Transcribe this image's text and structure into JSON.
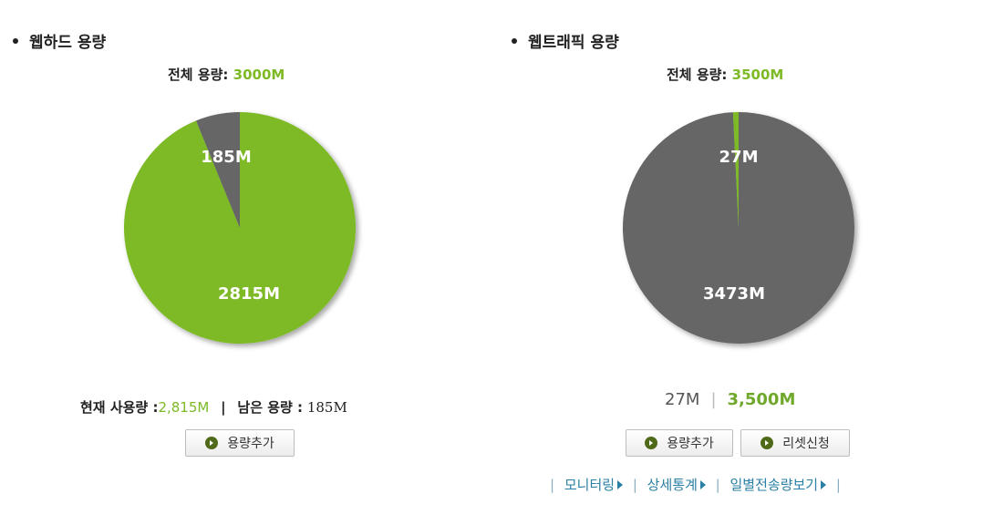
{
  "webhard": {
    "title": "웹하드 용량",
    "total_label": "전체 용량:",
    "total_value": "3000M",
    "pie": {
      "used": 2815,
      "remaining": 185,
      "used_label": "2815M",
      "remaining_label": "185M"
    },
    "current_usage_label": "현재 사용량 :",
    "current_usage_value": "2,815M",
    "separator": "|",
    "remaining_label": "남은 용량 :",
    "remaining_value": "185M",
    "add_button": "용량추가"
  },
  "traffic": {
    "title": "웹트래픽 용량",
    "total_label": "전체 용량:",
    "total_value": "3500M",
    "pie": {
      "used": 27,
      "remaining": 3473,
      "used_label": "27M",
      "remaining_label": "3473M"
    },
    "used_value": "27M",
    "separator": "|",
    "total_value_big": "3,500M",
    "add_button": "용량추가",
    "reset_button": "리셋신청",
    "links": [
      "모니터링",
      "상세통계",
      "일별전송량보기"
    ]
  },
  "colors": {
    "green": "#7dba26",
    "gray": "#666666"
  }
}
